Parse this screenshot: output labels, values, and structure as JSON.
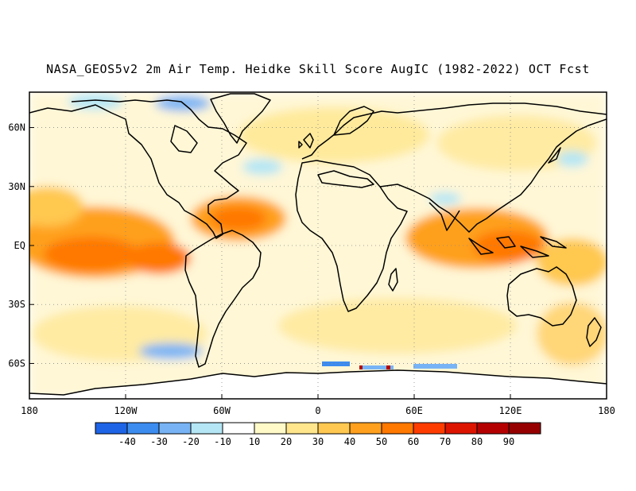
{
  "title": "NASA_GEOS5v2 2m Air Temp. Heidke Skill Score AugIC (1982-2022) OCT Fcst",
  "map": {
    "lon_range": [
      -180,
      180
    ],
    "lat_range": [
      -78,
      78
    ],
    "lat_ticks": [
      {
        "label": "60N",
        "lat": 60
      },
      {
        "label": "30N",
        "lat": 30
      },
      {
        "label": "EQ",
        "lat": 0
      },
      {
        "label": "30S",
        "lat": -30
      },
      {
        "label": "60S",
        "lat": -60
      }
    ],
    "lon_ticks": [
      {
        "label": "180",
        "lon": -180
      },
      {
        "label": "120W",
        "lon": -120
      },
      {
        "label": "60W",
        "lon": -60
      },
      {
        "label": "0",
        "lon": 0
      },
      {
        "label": "60E",
        "lon": 60
      },
      {
        "label": "120E",
        "lon": 120
      },
      {
        "label": "180",
        "lon": 180
      }
    ],
    "grid": "dotted",
    "colors": {
      "land_outline": "#000000",
      "grid": "#888888"
    }
  },
  "colorbar": {
    "labels": [
      "-40",
      "-30",
      "-20",
      "-10",
      "10",
      "20",
      "30",
      "40",
      "50",
      "60",
      "70",
      "80",
      "90"
    ],
    "colors": [
      "#1e64e6",
      "#3c8cf0",
      "#78b4f5",
      "#b4e6f5",
      "#ffffff",
      "#fffac8",
      "#ffe68c",
      "#ffc850",
      "#ffa01e",
      "#ff7800",
      "#ff3c00",
      "#dc1400",
      "#b40000",
      "#960000"
    ]
  }
}
